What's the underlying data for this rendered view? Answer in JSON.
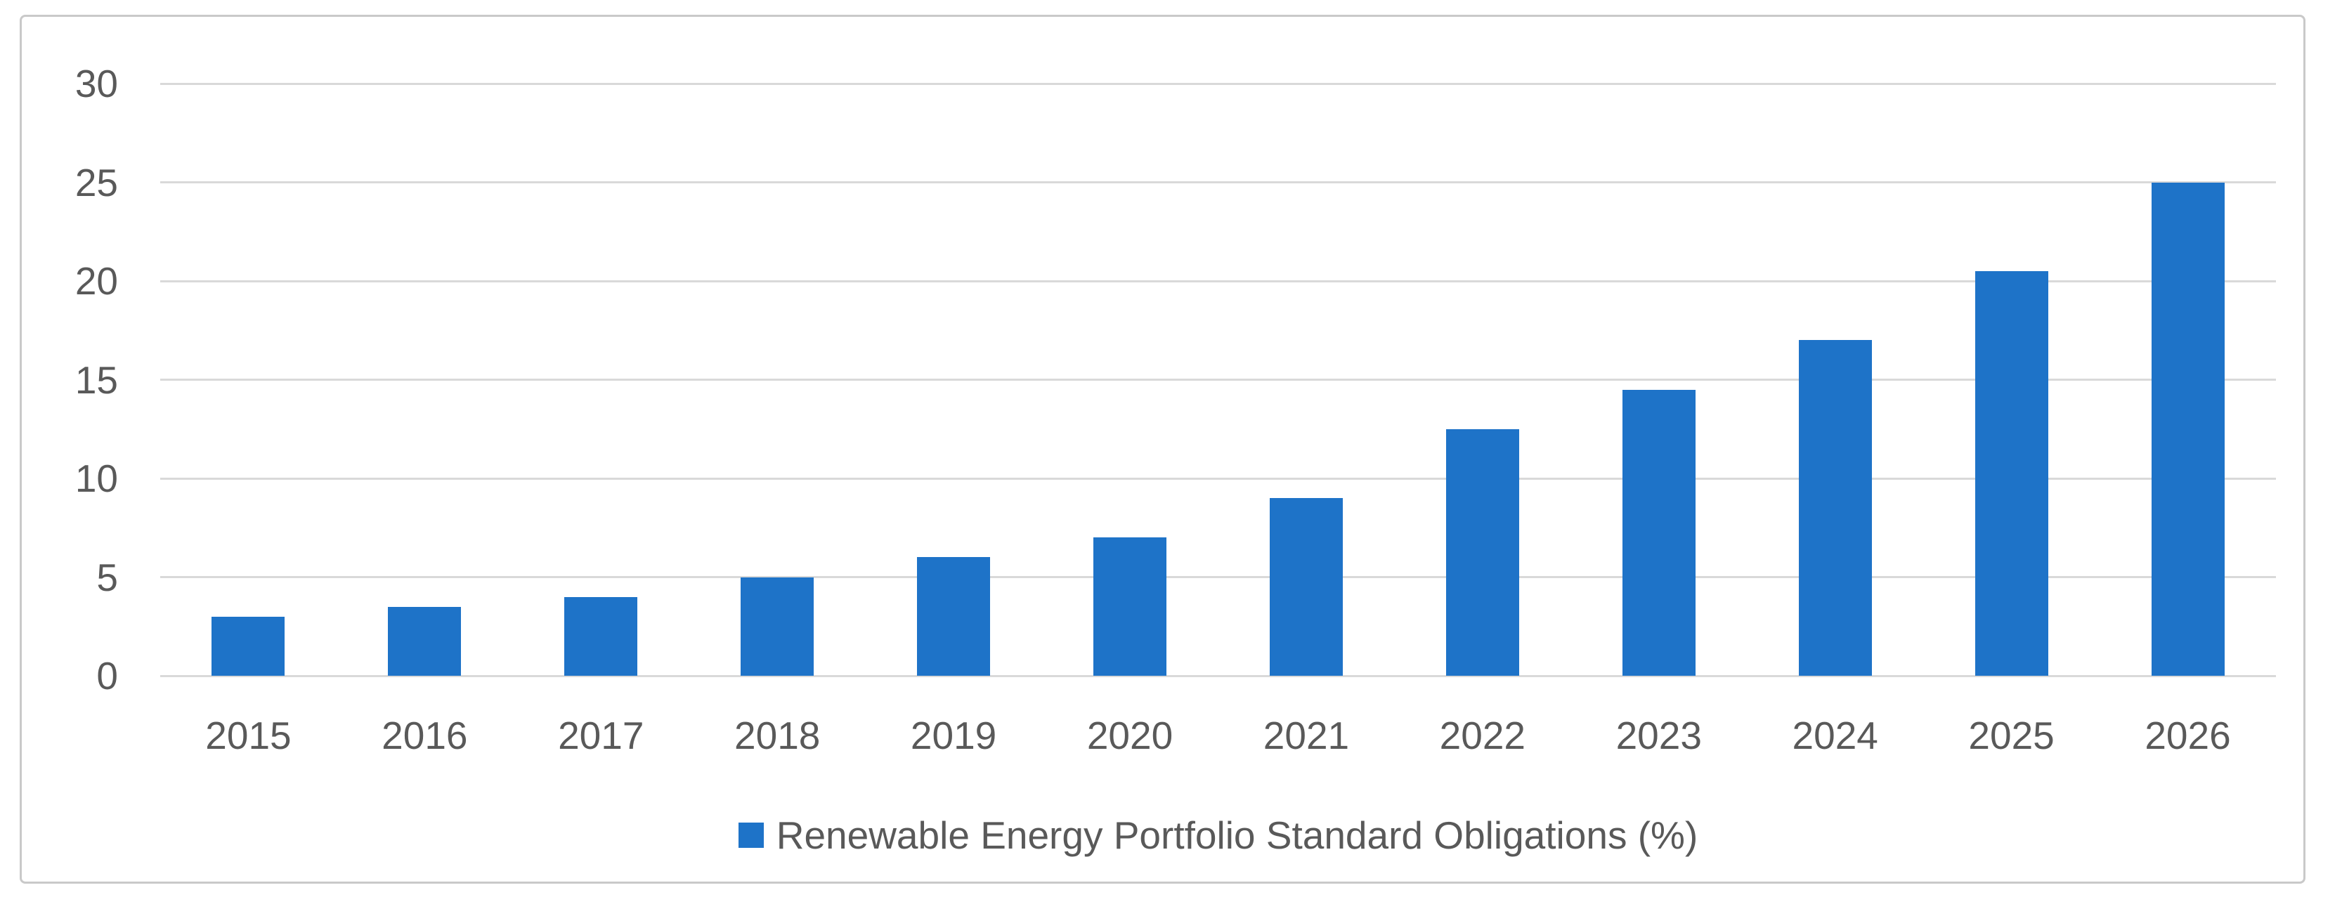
{
  "chart_data": {
    "type": "bar",
    "title": "",
    "categories": [
      "2015",
      "2016",
      "2017",
      "2018",
      "2019",
      "2020",
      "2021",
      "2022",
      "2023",
      "2024",
      "2025",
      "2026"
    ],
    "values": [
      3,
      3.5,
      4,
      5,
      6,
      7,
      9,
      12.5,
      14.5,
      17,
      20.5,
      25
    ],
    "series_name": "Renewable Energy Portfolio Standard Obligations (%)",
    "xlabel": "",
    "ylabel": "",
    "ylim": [
      0,
      30
    ],
    "yticks": [
      0,
      5,
      10,
      15,
      20,
      25,
      30
    ],
    "grid": true,
    "legend_position": "bottom-center",
    "colors": {
      "bar": "#1e73c8",
      "gridline": "#d9d9d9",
      "axis_text": "#595959",
      "frame_border": "#c9c9c9",
      "background": "#ffffff"
    }
  },
  "legend": {
    "label": "Renewable Energy Portfolio Standard Obligations (%)"
  }
}
